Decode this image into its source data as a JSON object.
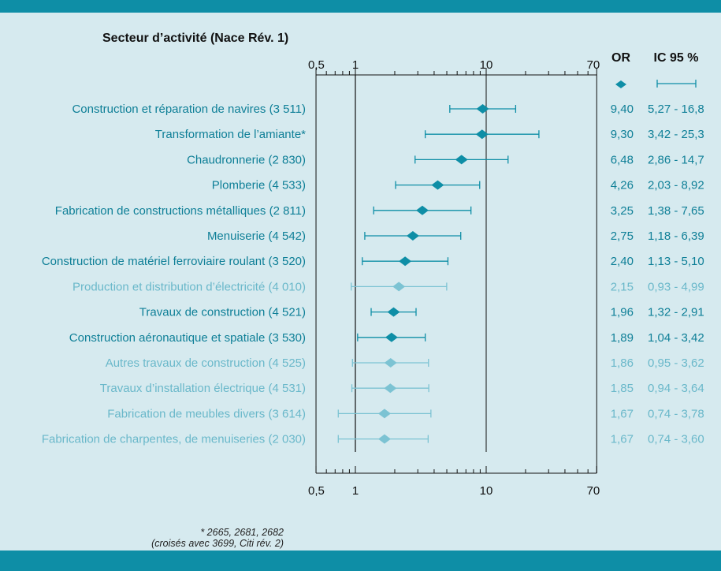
{
  "header": {
    "title": "Secteur d’activité (Nace Rév. 1)",
    "or_label": "OR",
    "ic_label": "IC 95 %"
  },
  "footnote": {
    "line1": "* 2665, 2681, 2682",
    "line2": "(croisés avec 3699, Citi rév. 2)"
  },
  "colors": {
    "significant": "#0e8ea6",
    "nonsignificant": "#7cc3d3",
    "label_significant": "#0e7f97",
    "label_nonsignificant": "#6ab8ca",
    "band": "#0e8ea6",
    "background": "#d6eaef"
  },
  "chart_data": {
    "type": "forest",
    "x_scale": "log",
    "xlim": [
      0.5,
      70
    ],
    "x_ticks": [
      "0,5",
      "1",
      "10",
      "70"
    ],
    "reference_line_at": 1,
    "rows": [
      {
        "label": "Construction et réparation de navires (3 511)",
        "or": 9.4,
        "low": 5.27,
        "high": 16.8,
        "or_text": "9,40",
        "ci_text": "5,27 - 16,8",
        "significant": true
      },
      {
        "label": "Transformation de l’amiante*",
        "or": 9.3,
        "low": 3.42,
        "high": 25.3,
        "or_text": "9,30",
        "ci_text": "3,42 - 25,3",
        "significant": true
      },
      {
        "label": "Chaudronnerie (2 830)",
        "or": 6.48,
        "low": 2.86,
        "high": 14.7,
        "or_text": "6,48",
        "ci_text": "2,86 - 14,7",
        "significant": true
      },
      {
        "label": "Plomberie (4 533)",
        "or": 4.26,
        "low": 2.03,
        "high": 8.92,
        "or_text": "4,26",
        "ci_text": "2,03 - 8,92",
        "significant": true
      },
      {
        "label": "Fabrication de constructions métalliques (2 811)",
        "or": 3.25,
        "low": 1.38,
        "high": 7.65,
        "or_text": "3,25",
        "ci_text": "1,38 - 7,65",
        "significant": true
      },
      {
        "label": "Menuiserie (4 542)",
        "or": 2.75,
        "low": 1.18,
        "high": 6.39,
        "or_text": "2,75",
        "ci_text": "1,18 - 6,39",
        "significant": true
      },
      {
        "label": "Construction de matériel ferroviaire roulant (3 520)",
        "or": 2.4,
        "low": 1.13,
        "high": 5.1,
        "or_text": "2,40",
        "ci_text": "1,13 - 5,10",
        "significant": true
      },
      {
        "label": "Production et distribution d’électricité (4 010)",
        "or": 2.15,
        "low": 0.93,
        "high": 4.99,
        "or_text": "2,15",
        "ci_text": "0,93 - 4,99",
        "significant": false
      },
      {
        "label": "Travaux de construction (4 521)",
        "or": 1.96,
        "low": 1.32,
        "high": 2.91,
        "or_text": "1,96",
        "ci_text": "1,32 - 2,91",
        "significant": true
      },
      {
        "label": "Construction aéronautique et spatiale (3 530)",
        "or": 1.89,
        "low": 1.04,
        "high": 3.42,
        "or_text": "1,89",
        "ci_text": "1,04 - 3,42",
        "significant": true
      },
      {
        "label": "Autres travaux de construction (4 525)",
        "or": 1.86,
        "low": 0.95,
        "high": 3.62,
        "or_text": "1,86",
        "ci_text": "0,95 - 3,62",
        "significant": false
      },
      {
        "label": "Travaux d’installation électrique (4 531)",
        "or": 1.85,
        "low": 0.94,
        "high": 3.64,
        "or_text": "1,85",
        "ci_text": "0,94 - 3,64",
        "significant": false
      },
      {
        "label": "Fabrication de meubles divers (3 614)",
        "or": 1.67,
        "low": 0.74,
        "high": 3.78,
        "or_text": "1,67",
        "ci_text": "0,74 - 3,78",
        "significant": false
      },
      {
        "label": "Fabrication de charpentes, de menuiseries (2 030)",
        "or": 1.67,
        "low": 0.74,
        "high": 3.6,
        "or_text": "1,67",
        "ci_text": "0,74 - 3,60",
        "significant": false
      }
    ]
  }
}
